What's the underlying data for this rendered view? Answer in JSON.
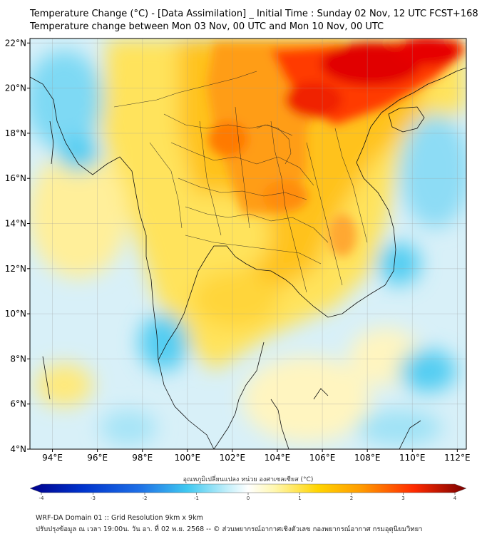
{
  "title": {
    "line1": "Temperature Change (°C) - [Data Assimilation] _ Initial Time : Sunday 02 Nov, 12 UTC FCST+168",
    "line2": "Temperature change between Mon 03 Nov, 00 UTC and Mon 10 Nov, 00 UTC"
  },
  "map": {
    "lon_labels": [
      "94°E",
      "96°E",
      "98°E",
      "100°E",
      "102°E",
      "104°E",
      "106°E",
      "108°E",
      "110°E",
      "112°E"
    ],
    "lat_labels": [
      "22°N",
      "20°N",
      "18°N",
      "16°N",
      "14°N",
      "12°N",
      "10°N",
      "8°N",
      "6°N",
      "4°N"
    ],
    "lon_range": [
      93,
      112.4
    ],
    "lat_range": [
      4,
      22.2
    ]
  },
  "colorbar": {
    "title": "อุณหภูมิเปลี่ยนแปลง หน่วย องศาเซลเซียส (°C)",
    "ticks": [
      "-4",
      "-3",
      "-2",
      "-1",
      "0",
      "1",
      "2",
      "3",
      "4"
    ],
    "range": [
      -4,
      4
    ]
  },
  "footer": {
    "line1": "WRF-DA Domain 01 :: Grid Resolution 9km x 9km",
    "line2": "ปรับปรุงข้อมูล ณ เวลา 19:00น. วัน อา. ที่ 02 พ.ย. 2568 -- © ส่วนพยากรณ์อากาศเชิงตัวเลข กองพยากรณ์อากาศ กรมอุตุนิยมวิทยา"
  },
  "colors": {
    "strong_warm": "#e10000",
    "warm": "#ff8c00",
    "mild_warm": "#ffd000",
    "light_warm": "#fff3a0",
    "neutral": "#f4f8e8",
    "light_cool": "#bde9f7",
    "cool": "#52cdf2",
    "coast": "#111111"
  }
}
